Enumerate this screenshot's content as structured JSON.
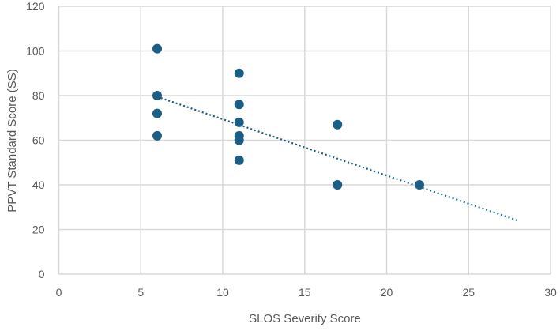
{
  "chart_data": {
    "type": "scatter",
    "title": "",
    "xlabel": "SLOS Severity Score",
    "ylabel": "PPVT Standard Score (SS)",
    "xlim": [
      0,
      30
    ],
    "ylim": [
      0,
      120
    ],
    "xticks": [
      0,
      5,
      10,
      15,
      20,
      25,
      30
    ],
    "yticks": [
      0,
      20,
      40,
      60,
      80,
      100,
      120
    ],
    "grid": true,
    "legend": "none",
    "marker_color": "#1b5e86",
    "points": [
      {
        "x": 6,
        "y": 101
      },
      {
        "x": 6,
        "y": 80
      },
      {
        "x": 6,
        "y": 72
      },
      {
        "x": 6,
        "y": 62
      },
      {
        "x": 11,
        "y": 90
      },
      {
        "x": 11,
        "y": 76
      },
      {
        "x": 11,
        "y": 68
      },
      {
        "x": 11,
        "y": 62
      },
      {
        "x": 11,
        "y": 60
      },
      {
        "x": 11,
        "y": 51
      },
      {
        "x": 17,
        "y": 67
      },
      {
        "x": 17,
        "y": 40
      },
      {
        "x": 22,
        "y": 40
      }
    ],
    "trendline": {
      "type": "linear",
      "style": "dotted",
      "x": [
        6,
        28
      ],
      "y": [
        79.5,
        24
      ]
    }
  }
}
